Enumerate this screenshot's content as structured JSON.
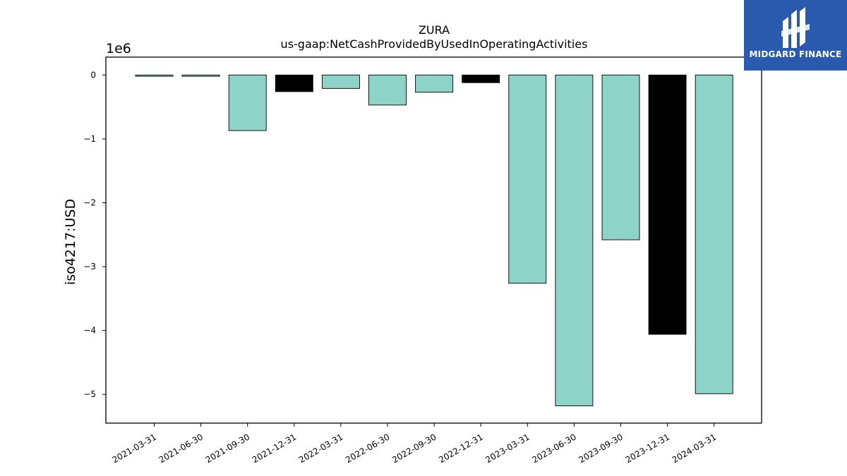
{
  "chart_data": {
    "type": "bar",
    "title": "ZURA",
    "subtitle": "us-gaap:NetCashProvidedByUsedInOperatingActivities",
    "ylabel": "iso4217:USD",
    "y_scale_label": "1e6",
    "categories": [
      "2021-03-31",
      "2021-06-30",
      "2021-09-30",
      "2021-12-31",
      "2022-03-31",
      "2022-06-30",
      "2022-09-30",
      "2022-12-31",
      "2023-03-31",
      "2023-06-30",
      "2023-09-30",
      "2023-12-31",
      "2024-03-31"
    ],
    "values": [
      -20000,
      -20000,
      -870000,
      -260000,
      -210000,
      -470000,
      -270000,
      -120000,
      -3260000,
      -5180000,
      -2580000,
      -4060000,
      -4990000
    ],
    "bar_colors": [
      "#8dd3c7",
      "#8dd3c7",
      "#8dd3c7",
      "#000000",
      "#8dd3c7",
      "#8dd3c7",
      "#8dd3c7",
      "#000000",
      "#8dd3c7",
      "#8dd3c7",
      "#8dd3c7",
      "#000000",
      "#8dd3c7"
    ],
    "yticks": [
      0,
      -1,
      -2,
      -3,
      -4,
      -5
    ],
    "ylim": [
      -5.45,
      0.28
    ],
    "grid": false
  },
  "logo": {
    "text": "MIDGARD FINANCE",
    "color": "#2a5aad"
  }
}
